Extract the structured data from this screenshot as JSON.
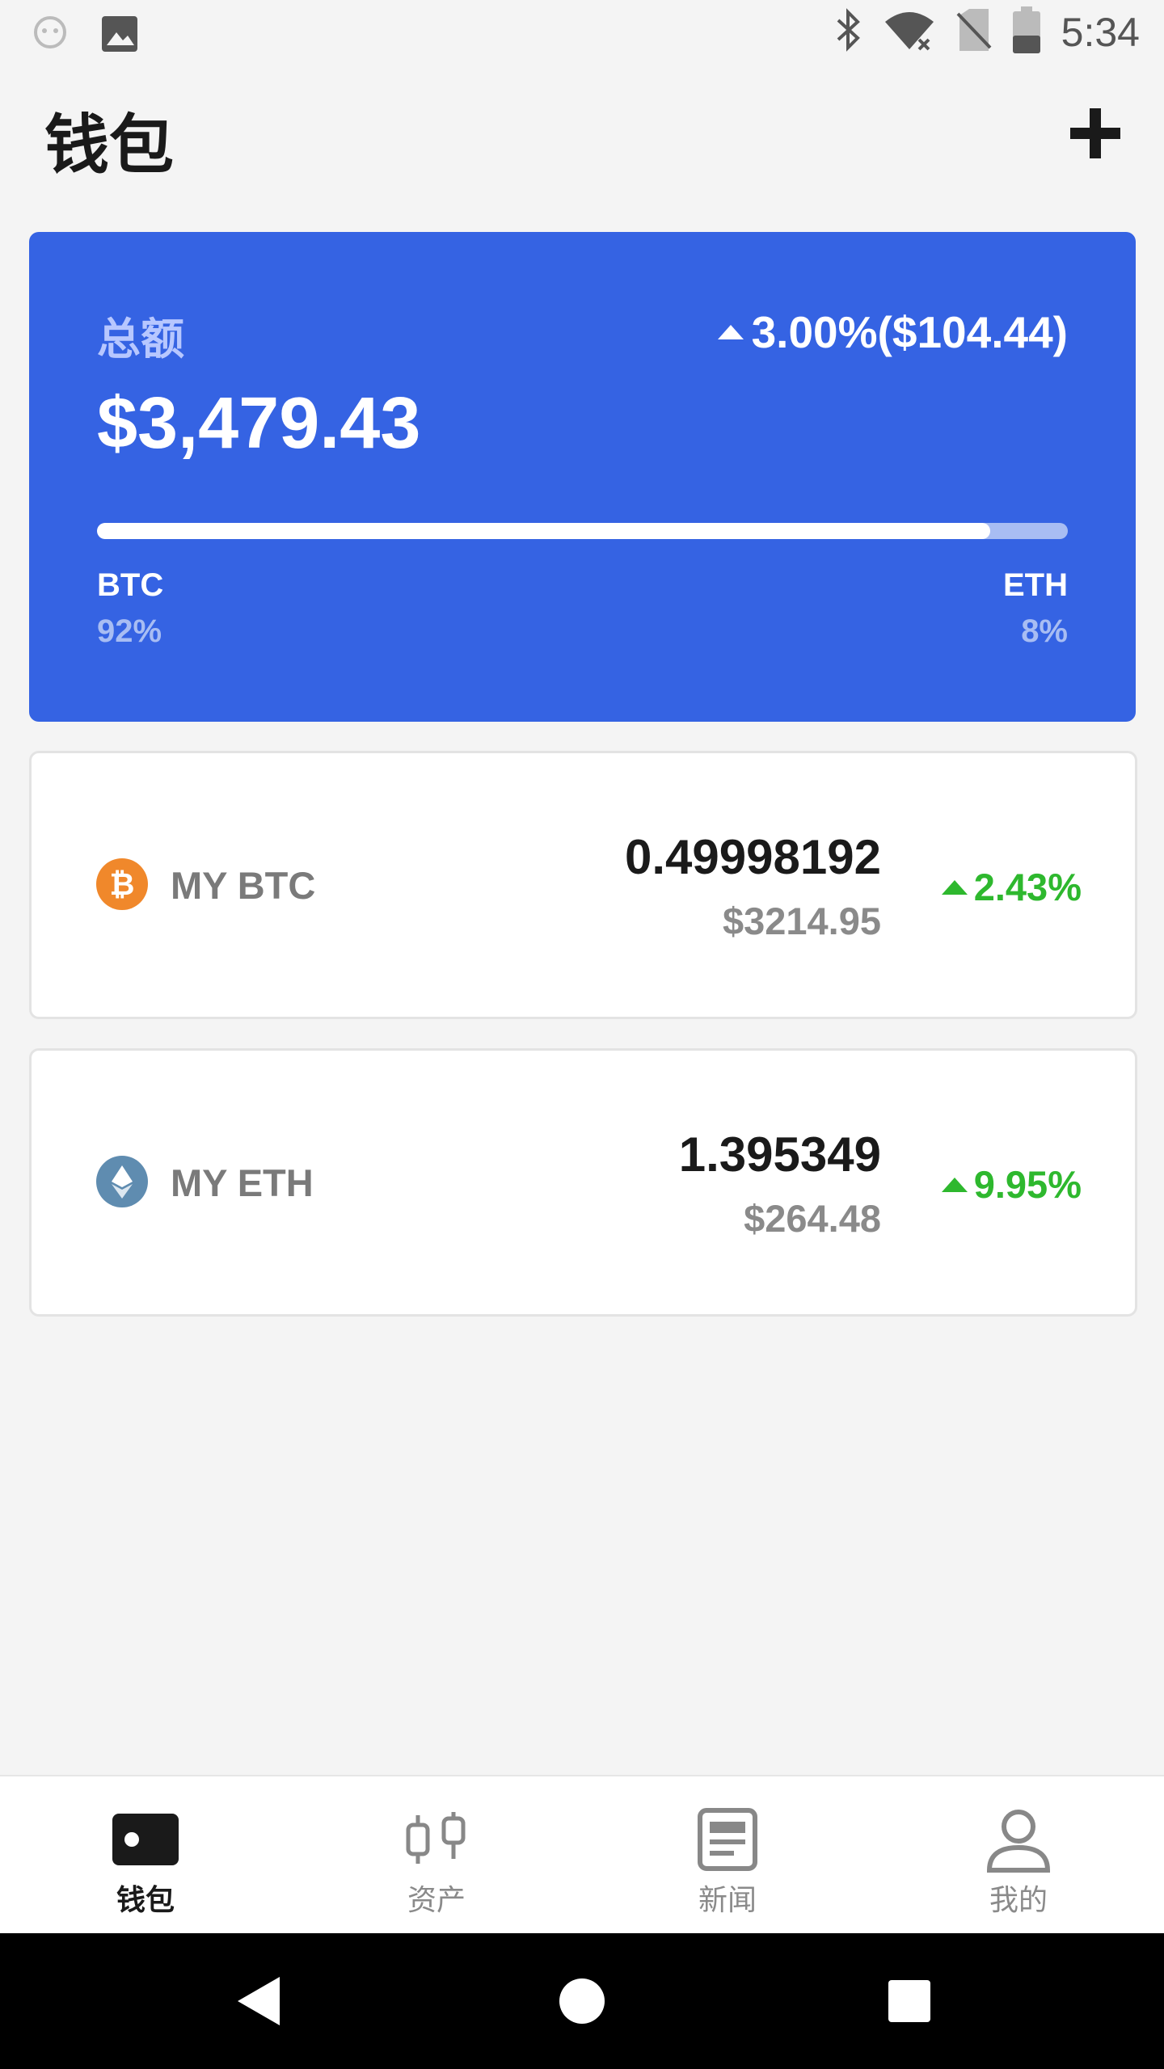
{
  "status_bar": {
    "time": "5:34"
  },
  "header": {
    "title": "钱包"
  },
  "summary": {
    "label": "总额",
    "amount": "$3,479.43",
    "change": "3.00%($104.44)",
    "allocation": [
      {
        "name": "BTC",
        "percent_label": "92%",
        "fraction": 0.92
      },
      {
        "name": "ETH",
        "percent_label": "8%",
        "fraction": 0.08
      }
    ]
  },
  "assets": [
    {
      "name": "MY BTC",
      "amount": "0.49998192",
      "value": "$3214.95",
      "change": "2.43%",
      "icon": "bitcoin-icon",
      "icon_color": "#f0882b"
    },
    {
      "name": "MY ETH",
      "amount": "1.395349",
      "value": "$264.48",
      "change": "9.95%",
      "icon": "ethereum-icon",
      "icon_color": "#5f8cb0"
    }
  ],
  "bottom_nav": {
    "items": [
      {
        "label": "钱包",
        "icon": "wallet-icon",
        "active": true
      },
      {
        "label": "资产",
        "icon": "candlestick-icon",
        "active": false
      },
      {
        "label": "新闻",
        "icon": "news-icon",
        "active": false
      },
      {
        "label": "我的",
        "icon": "profile-icon",
        "active": false
      }
    ]
  },
  "colors": {
    "card_blue": "#3563e3",
    "positive_green": "#2eb82e",
    "background": "#f4f4f4"
  }
}
